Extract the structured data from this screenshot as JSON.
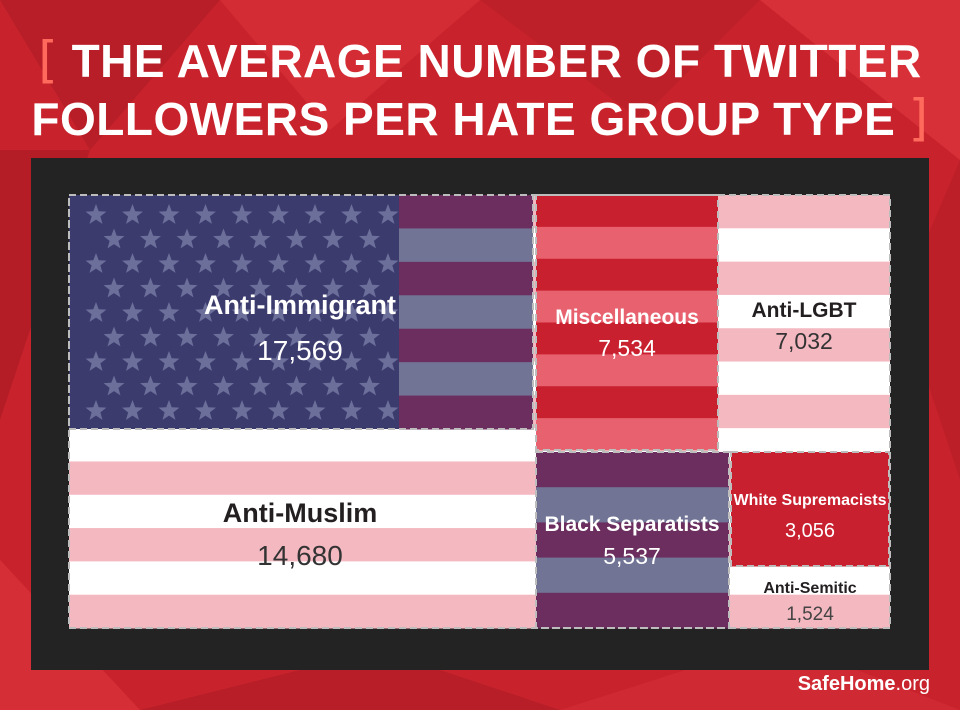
{
  "title_line1": "THE AVERAGE NUMBER OF TWITTER",
  "title_line2": "FOLLOWERS PER HATE GROUP TYPE",
  "bracket_open": "[",
  "bracket_close": "]",
  "credit": {
    "bold": "SafeHome",
    "normal": ".org"
  },
  "colors": {
    "background": "#c8232c",
    "frame": "#232323",
    "navy": "#3c3b6e",
    "light_pink": "#f4b8c1",
    "white": "#ffffff",
    "red": "#c9202f",
    "dark_red_stripe": "#e7616f",
    "purple": "#6b2e5e",
    "slate": "#727496"
  },
  "chart_data": {
    "type": "treemap",
    "title": "THE AVERAGE NUMBER OF TWITTER FOLLOWERS PER HATE GROUP TYPE",
    "unit": "",
    "items": [
      {
        "name": "Anti-Immigrant",
        "value": 17569,
        "label": "17,569"
      },
      {
        "name": "Anti-Muslim",
        "value": 14680,
        "label": "14,680"
      },
      {
        "name": "Miscellaneous",
        "value": 7534,
        "label": "7,534"
      },
      {
        "name": "Anti-LGBT",
        "value": 7032,
        "label": "7,032"
      },
      {
        "name": "Black Separatists",
        "value": 5537,
        "label": "5,537"
      },
      {
        "name": "White Supremacists",
        "value": 3056,
        "label": "3,056"
      },
      {
        "name": "Anti-Semitic",
        "value": 1524,
        "label": "1,524"
      }
    ]
  }
}
